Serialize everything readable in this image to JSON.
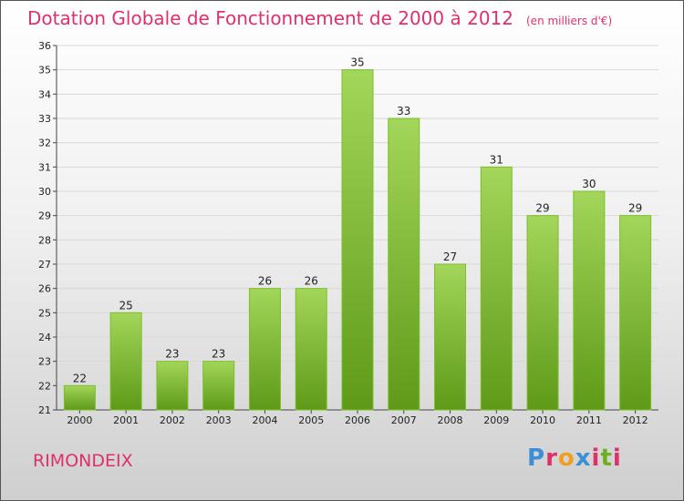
{
  "header": {
    "title": "Dotation Globale de Fonctionnement de 2000 à 2012",
    "subtitle": "(en milliers d'€)"
  },
  "footer": {
    "commune": "RIMONDEIX",
    "logo": "Proxiti",
    "logo_colors": [
      "#3a8fd6",
      "#e0306a",
      "#f0a020",
      "#3a8fd6",
      "#e0306a",
      "#6ab023",
      "#e0306a"
    ]
  },
  "colors": {
    "bar_top": "#a3d65a",
    "bar_bottom": "#5e9a18",
    "title": "#e0306a",
    "grid": "#d8d8d8"
  },
  "chart_data": {
    "type": "bar",
    "categories": [
      "2000",
      "2001",
      "2002",
      "2003",
      "2004",
      "2005",
      "2006",
      "2007",
      "2008",
      "2009",
      "2010",
      "2011",
      "2012"
    ],
    "values": [
      22,
      25,
      23,
      23,
      26,
      26,
      35,
      33,
      27,
      31,
      29,
      30,
      29
    ],
    "title": "Dotation Globale de Fonctionnement de 2000 à 2012",
    "ylim": [
      21,
      36
    ],
    "yticks": [
      21,
      22,
      23,
      24,
      25,
      26,
      27,
      28,
      29,
      30,
      31,
      32,
      33,
      34,
      35,
      36
    ],
    "grid": true
  }
}
